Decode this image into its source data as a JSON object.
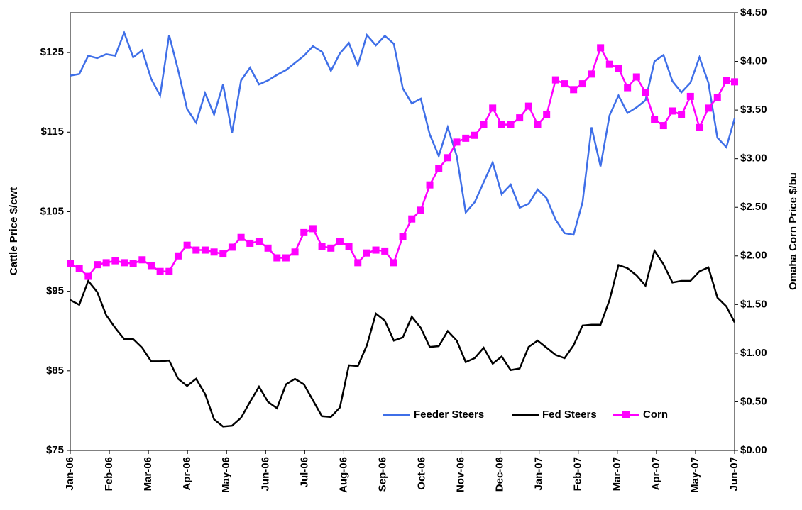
{
  "chart_data": {
    "type": "line",
    "x": [
      0,
      0.23,
      0.46,
      0.69,
      0.92,
      1.15,
      1.38,
      1.61,
      1.84,
      2.07,
      2.3,
      2.53,
      2.76,
      2.99,
      3.22,
      3.45,
      3.68,
      3.91,
      4.14,
      4.37,
      4.6,
      4.83,
      5.06,
      5.29,
      5.52,
      5.75,
      5.98,
      6.21,
      6.44,
      6.67,
      6.9,
      7.13,
      7.36,
      7.59,
      7.82,
      8.05,
      8.28,
      8.51,
      8.74,
      8.97,
      9.2,
      9.43,
      9.66,
      9.89,
      10.12,
      10.35,
      10.58,
      10.81,
      11.04,
      11.27,
      11.5,
      11.73,
      11.96,
      12.19,
      12.42,
      12.65,
      12.88,
      13.11,
      13.34,
      13.57,
      13.8,
      14.03,
      14.26,
      14.49,
      14.72,
      14.95,
      15.18,
      15.41,
      15.64,
      15.87,
      16.1,
      16.33,
      16.56,
      16.79,
      17
    ],
    "series": [
      {
        "name": "Feeder Steers",
        "color": "#3f6fe8",
        "axis": "y",
        "values": [
          122.1,
          122.3,
          124.6,
          124.3,
          124.8,
          124.6,
          127.5,
          124.4,
          125.3,
          121.7,
          119.6,
          127.2,
          122.8,
          117.9,
          116.2,
          119.9,
          117.2,
          121,
          114.9,
          121.5,
          123.1,
          121,
          121.5,
          122.2,
          122.8,
          123.7,
          124.6,
          125.8,
          125.1,
          122.7,
          124.9,
          126.2,
          123.4,
          127.2,
          125.9,
          127.1,
          126.1,
          120.5,
          118.6,
          119.2,
          114.7,
          112,
          115.6,
          112,
          104.9,
          106.2,
          108.7,
          111.2,
          107.2,
          108.4,
          105.5,
          106,
          107.8,
          106.7,
          104,
          102.3,
          102.1,
          106.2,
          115.6,
          110.7,
          117.1,
          119.6,
          117.4,
          118.1,
          119,
          123.9,
          124.7,
          121.4,
          120,
          121.2,
          124.4,
          121.2,
          114.3,
          113.1,
          116.7
        ]
      },
      {
        "name": "Fed Steers",
        "color": "#000000",
        "axis": "y",
        "values": [
          93.9,
          93.3,
          96.3,
          94.9,
          92,
          90.4,
          89,
          89,
          87.9,
          86.2,
          86.2,
          86.3,
          84,
          83.1,
          84,
          82.1,
          78.9,
          78,
          78.1,
          79.1,
          81.1,
          83,
          81.1,
          80.3,
          83.3,
          84,
          83.3,
          81.3,
          79.3,
          79.2,
          80.4,
          85.7,
          85.6,
          88.2,
          92.2,
          91.3,
          88.8,
          89.2,
          91.8,
          90.4,
          88,
          88.1,
          90,
          88.8,
          86.1,
          86.6,
          87.9,
          85.9,
          86.8,
          85.1,
          85.3,
          88,
          88.8,
          87.9,
          87,
          86.6,
          88.2,
          90.7,
          90.8,
          90.8,
          93.9,
          98.3,
          97.9,
          97,
          95.7,
          100.1,
          98.4,
          96.1,
          96.3,
          96.3,
          97.5,
          98,
          94.2,
          93.1,
          91.1
        ]
      },
      {
        "name": "Corn",
        "color": "#ff00ff",
        "axis": "y2",
        "marker": "square",
        "values": [
          1.92,
          1.87,
          1.79,
          1.91,
          1.93,
          1.95,
          1.93,
          1.92,
          1.96,
          1.9,
          1.84,
          1.84,
          2,
          2.11,
          2.06,
          2.06,
          2.04,
          2.02,
          2.09,
          2.19,
          2.13,
          2.15,
          2.08,
          1.98,
          1.98,
          2.04,
          2.24,
          2.28,
          2.1,
          2.08,
          2.15,
          2.1,
          1.93,
          2.03,
          2.06,
          2.05,
          1.93,
          2.2,
          2.38,
          2.47,
          2.73,
          2.9,
          3.01,
          3.17,
          3.21,
          3.24,
          3.35,
          3.52,
          3.35,
          3.35,
          3.42,
          3.54,
          3.35,
          3.45,
          3.81,
          3.77,
          3.71,
          3.77,
          3.87,
          4.14,
          3.97,
          3.93,
          3.73,
          3.84,
          3.68,
          3.4,
          3.34,
          3.49,
          3.45,
          3.64,
          3.32,
          3.52,
          3.63,
          3.8,
          3.79
        ]
      }
    ],
    "xlim": [
      0,
      17
    ],
    "xticks": [
      {
        "value": 0,
        "label": "Jan-06"
      },
      {
        "value": 1,
        "label": "Feb-06"
      },
      {
        "value": 2,
        "label": "Mar-06"
      },
      {
        "value": 3,
        "label": "Apr-06"
      },
      {
        "value": 4,
        "label": "May-06"
      },
      {
        "value": 5,
        "label": "Jun-06"
      },
      {
        "value": 6,
        "label": "Jul-06"
      },
      {
        "value": 7,
        "label": "Aug-06"
      },
      {
        "value": 8,
        "label": "Sep-06"
      },
      {
        "value": 9,
        "label": "Oct-06"
      },
      {
        "value": 10,
        "label": "Nov-06"
      },
      {
        "value": 11,
        "label": "Dec-06"
      },
      {
        "value": 12,
        "label": "Jan-07"
      },
      {
        "value": 13,
        "label": "Feb-07"
      },
      {
        "value": 14,
        "label": "Mar-07"
      },
      {
        "value": 15,
        "label": "Apr-07"
      },
      {
        "value": 16,
        "label": "May-07"
      },
      {
        "value": 17,
        "label": "Jun-07"
      }
    ],
    "ylabel": "Cattle Price $/cwt",
    "ylim": [
      75,
      130
    ],
    "yticks": [
      {
        "value": 75,
        "label": "$75"
      },
      {
        "value": 85,
        "label": "$85"
      },
      {
        "value": 95,
        "label": "$95"
      },
      {
        "value": 105,
        "label": "$105"
      },
      {
        "value": 115,
        "label": "$115"
      },
      {
        "value": 125,
        "label": "$125"
      }
    ],
    "y2label": "Omaha Corn Price $/bu",
    "y2lim": [
      0,
      4.5
    ],
    "y2ticks": [
      {
        "value": 0,
        "label": "$0.00"
      },
      {
        "value": 0.5,
        "label": "$0.50"
      },
      {
        "value": 1,
        "label": "$1.00"
      },
      {
        "value": 1.5,
        "label": "$1.50"
      },
      {
        "value": 2,
        "label": "$2.00"
      },
      {
        "value": 2.5,
        "label": "$2.50"
      },
      {
        "value": 3,
        "label": "$3.00"
      },
      {
        "value": 3.5,
        "label": "$3.50"
      },
      {
        "value": 4,
        "label": "$4.00"
      },
      {
        "value": 4.5,
        "label": "$4.50"
      }
    ],
    "legend": "lower right"
  }
}
